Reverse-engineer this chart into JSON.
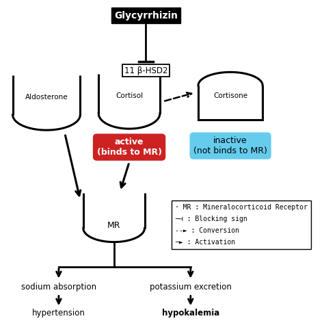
{
  "title": "Glycyrrhizin",
  "bg_color": "#ffffff",
  "text_color": "#000000",
  "active_bg": "#cc2222",
  "active_text": "#ffffff",
  "active_label1": "active",
  "active_label2": "(binds to MR)",
  "inactive_bg": "#66ccee",
  "inactive_text": "#000000",
  "inactive_label1": "inactive",
  "inactive_label2": "(not binds to MR)",
  "enzyme_label": "11 β-HSD2",
  "aldosterone_label": "Aldosterone",
  "cortisol_label": "Cortisol",
  "cortisone_label": "Cortisone",
  "mr_label": "MR",
  "sodium_label": "sodium absorption",
  "potassium_label": "potassium excretion",
  "hypertension_label": "hypertension",
  "hypokalemia_label": "hypokalemia",
  "legend_lines": [
    "· MR : Mineralocorticoid Receptor",
    "─⊣ : Blocking sign",
    "--► : Conversion",
    "─► : Activation"
  ]
}
